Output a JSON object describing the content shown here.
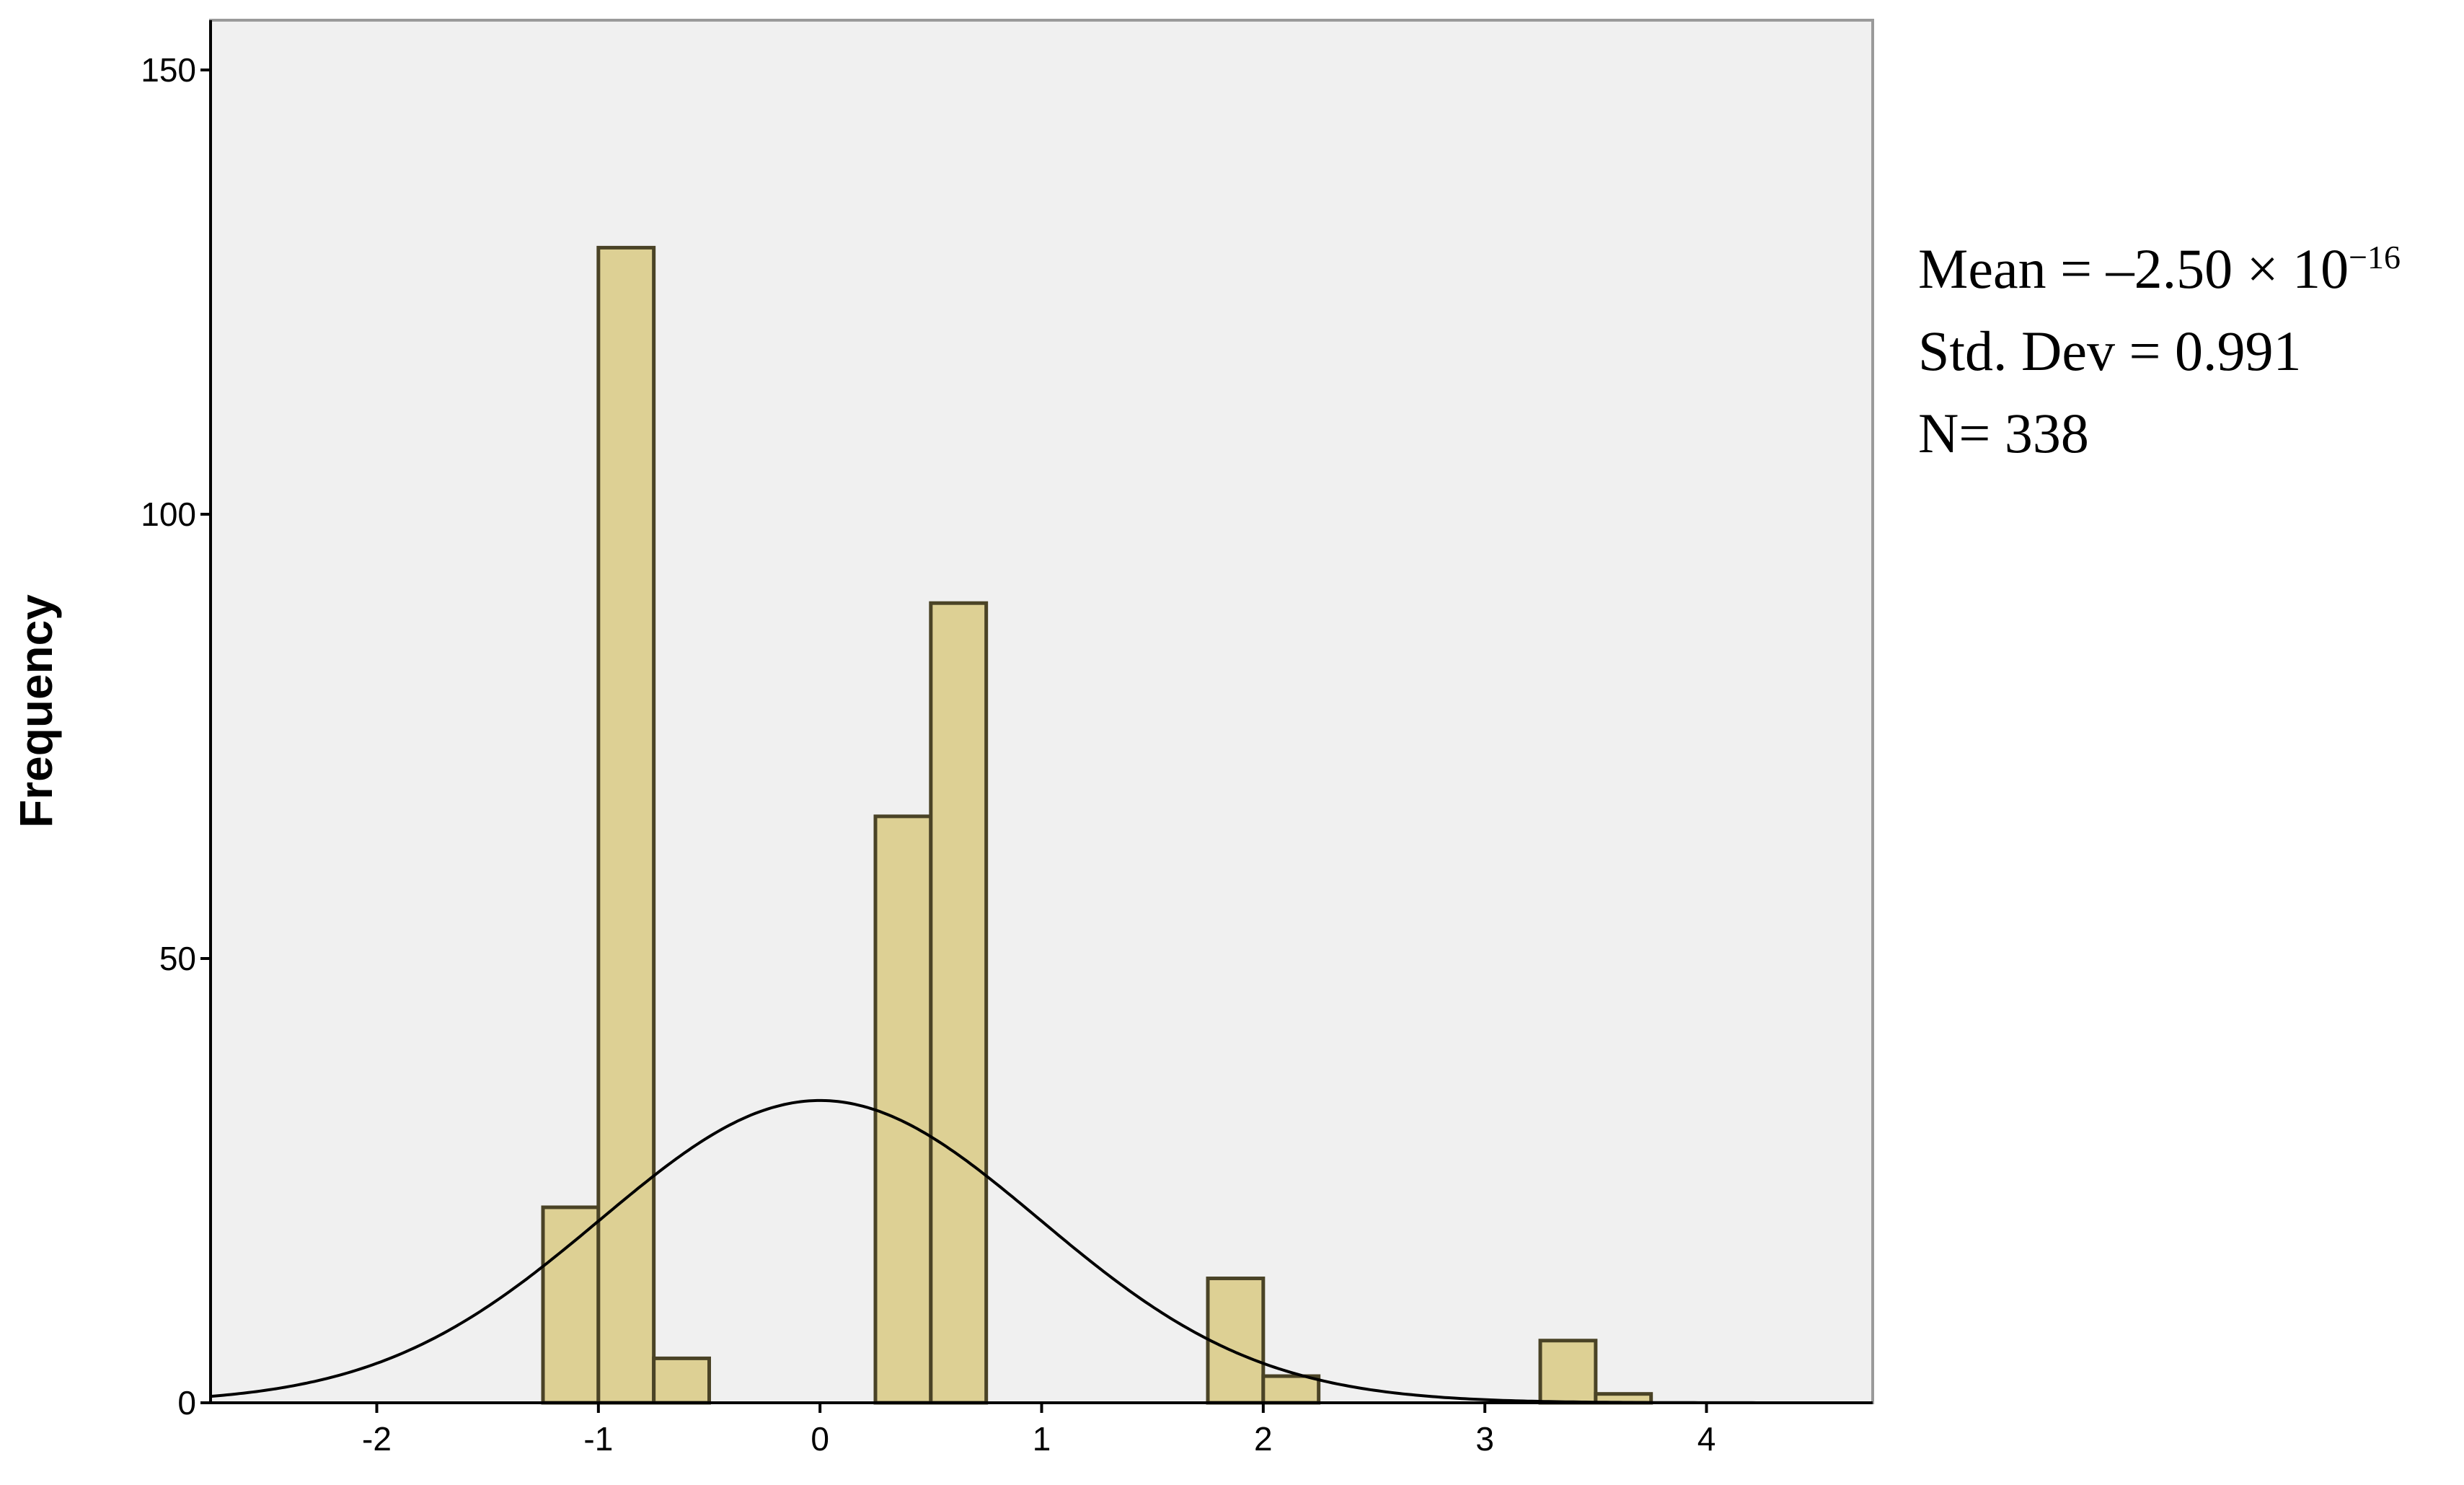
{
  "chart_data": {
    "type": "bar",
    "subtype": "histogram",
    "ylabel": "Frequency",
    "xlabel": "",
    "xlim": [
      -2.75,
      4.75
    ],
    "ylim": [
      0,
      150
    ],
    "xticks": [
      -2,
      -1,
      0,
      1,
      2,
      3,
      4
    ],
    "xtick_labels": [
      "-2",
      "-1",
      "0",
      "1",
      "2",
      "3",
      "4"
    ],
    "yticks": [
      0,
      50,
      100,
      150
    ],
    "ytick_labels": [
      "0",
      "50",
      "100",
      "150"
    ],
    "bin_width": 0.25,
    "bins": [
      {
        "x0": -1.25,
        "x1": -1.0,
        "count": 22
      },
      {
        "x0": -1.0,
        "x1": -0.75,
        "count": 130
      },
      {
        "x0": -0.75,
        "x1": -0.5,
        "count": 5
      },
      {
        "x0": 0.25,
        "x1": 0.5,
        "count": 66
      },
      {
        "x0": 0.5,
        "x1": 0.75,
        "count": 90
      },
      {
        "x0": 1.75,
        "x1": 2.0,
        "count": 14
      },
      {
        "x0": 2.0,
        "x1": 2.25,
        "count": 3
      },
      {
        "x0": 3.25,
        "x1": 3.5,
        "count": 7
      },
      {
        "x0": 3.5,
        "x1": 3.75,
        "count": 1
      }
    ],
    "normal_curve": {
      "mean": 0,
      "std": 0.991,
      "n": 338
    },
    "colors": {
      "bar_fill": "#ddd094",
      "bar_stroke": "#4a4326",
      "plot_bg": "#f0f0f0",
      "curve": "#000000"
    },
    "grid": false,
    "stats": {
      "mean_text": "Mean = –2.50 × 10",
      "mean_exp": "−16",
      "std_text": "Std. Dev = 0.991",
      "n_text": "N= 338"
    }
  }
}
